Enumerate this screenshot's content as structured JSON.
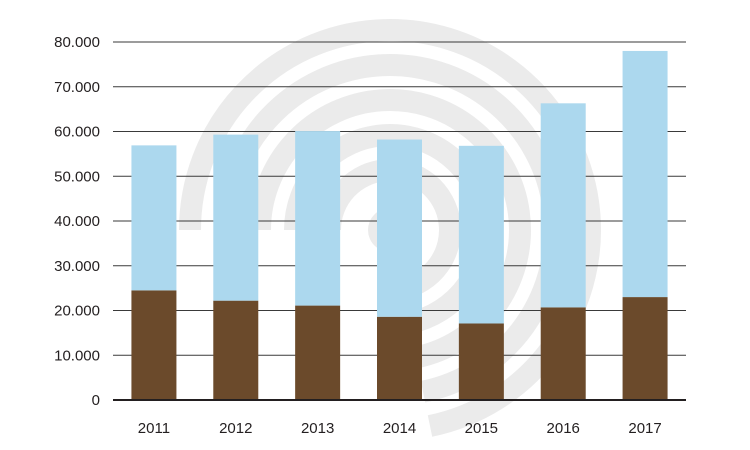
{
  "chart_data": {
    "type": "bar",
    "stacked": true,
    "categories": [
      "2011",
      "2012",
      "2013",
      "2014",
      "2015",
      "2016",
      "2017"
    ],
    "series": [
      {
        "values": [
          24500,
          22200,
          21100,
          18600,
          17100,
          20700,
          23000
        ]
      },
      {
        "values": [
          32400,
          37100,
          39000,
          39600,
          39700,
          45600,
          55000
        ]
      }
    ],
    "ylim": [
      0,
      80000
    ],
    "yticks": [
      0,
      10000,
      20000,
      30000,
      40000,
      50000,
      60000,
      70000,
      80000
    ],
    "ytick_labels": [
      "0",
      "10.000",
      "20.000",
      "30.000",
      "40.000",
      "50.000",
      "60.000",
      "70.000",
      "80.000"
    ],
    "grid": true,
    "legend": "none",
    "title": "",
    "xlabel": "",
    "ylabel": ""
  },
  "colors": {
    "bottom_series": "#6b4a2b",
    "top_series": "#acd8ee",
    "watermark": "#ebebeb"
  }
}
